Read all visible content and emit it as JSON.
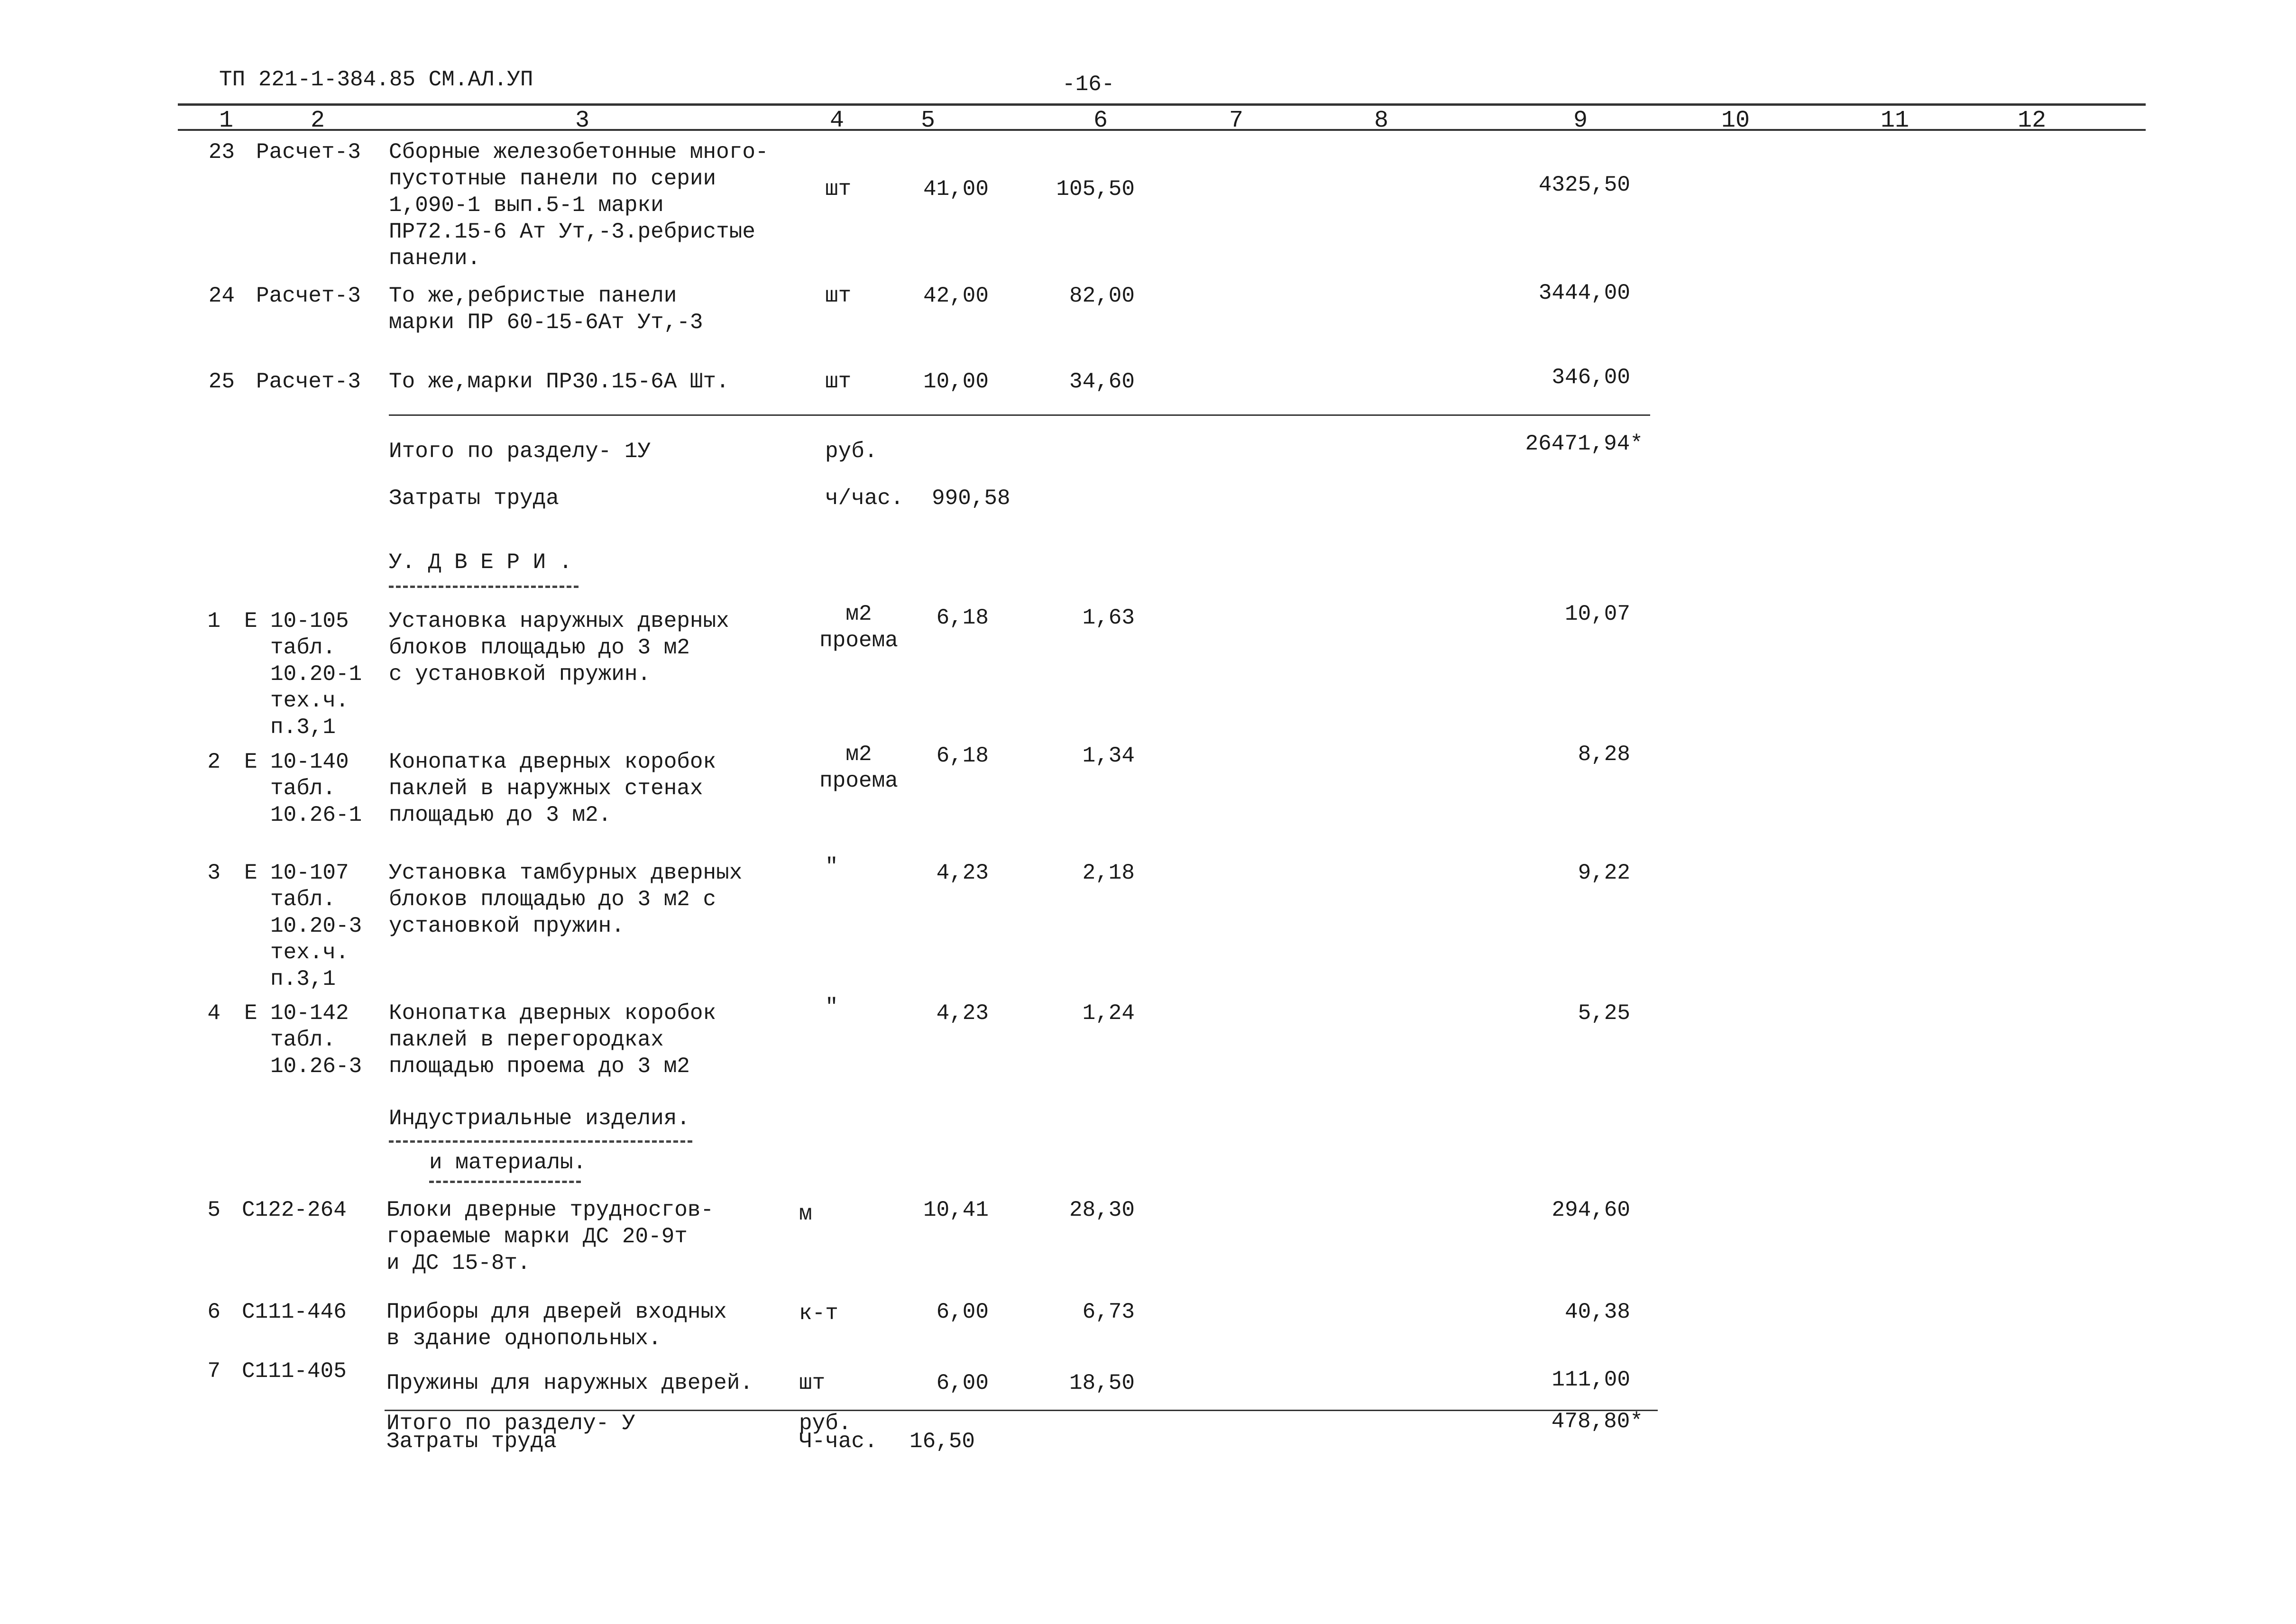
{
  "header": {
    "doc_code": "ТП 221-1-384.85 СМ.АЛ.УП",
    "page": "-16-",
    "columns": [
      "1",
      "2",
      "3",
      "4",
      "5",
      "6",
      "7",
      "8",
      "9",
      "10",
      "11",
      "12"
    ]
  },
  "section4_tail": {
    "rows": [
      {
        "no": "23",
        "code": "Расчет-3",
        "desc": "Сборные железобетонные много-\nпустотные  панели по серии\n1,090-1 вып.5-1 марки\nПР72.15-6 Ат Ут,-3.ребристые\nпанели.",
        "unit": "шт",
        "qty": "41,00",
        "price": "105,50",
        "total": "4325,50"
      },
      {
        "no": "24",
        "code": "Расчет-3",
        "desc": "То же,ребристые панели\nмарки ПР 60-15-6Ат Ут,-3",
        "unit": "шт",
        "qty": "42,00",
        "price": "82,00",
        "total": "3444,00"
      },
      {
        "no": "25",
        "code": "Расчет-3",
        "desc": "То же,марки ПР30.15-6А Шт.",
        "unit": "шт",
        "qty": "10,00",
        "price": "34,60",
        "total": "346,00"
      }
    ],
    "total_label": "Итого по разделу- 1У",
    "total_unit": "руб.",
    "total_value": "26471,94*",
    "labor_label": "Затраты труда",
    "labor_unit": "ч/час.",
    "labor_value": "990,58"
  },
  "section5": {
    "title": "У. Д В Е Р И .",
    "rows": [
      {
        "no": "1",
        "e": "Е",
        "code": "10-105\nтабл.\n10.20-1\nтех.ч.\nп.3,1",
        "desc": "Установка наружных дверных\nблоков площадью до 3 м2\nс установкой пружин.",
        "unit": "м2\nпроема",
        "qty": "6,18",
        "price": "1,63",
        "total": "10,07"
      },
      {
        "no": "2",
        "e": "Е",
        "code": "10-140\nтабл.\n10.26-1",
        "desc": "Конопатка дверных коробок\nпаклей в наружных стенах\nплощадью до 3 м2.",
        "unit": "м2\nпроема",
        "qty": "6,18",
        "price": "1,34",
        "total": "8,28"
      },
      {
        "no": "3",
        "e": "Е",
        "code": "10-107\nтабл.\n10.20-3\nтех.ч.\nп.3,1",
        "desc": "Установка тамбурных дверных\nблоков площадью до 3 м2 с\nустановкой пружин.",
        "unit": "\"",
        "qty": "4,23",
        "price": "2,18",
        "total": "9,22"
      },
      {
        "no": "4",
        "e": "Е",
        "code": "10-142\nтабл.\n10.26-3",
        "desc": "Конопатка дверных коробок\nпаклей в перегородках\nплощадью проема до 3 м2",
        "unit": "\"",
        "qty": "4,23",
        "price": "1,24",
        "total": "5,25"
      }
    ],
    "subheading_1": "Индустриальные изделия.",
    "subheading_2": "и материалы.",
    "rows2": [
      {
        "no": "5",
        "code": "С122-264",
        "desc": "Блоки дверные трудносгов-\nгораемые марки ДС 20-9т\nи ДС 15-8т.",
        "unit": "м",
        "qty": "10,41",
        "price": "28,30",
        "total": "294,60"
      },
      {
        "no": "6",
        "code": "С111-446",
        "desc": "Приборы для дверей входных\nв здание однопольных.",
        "unit": "к-т",
        "qty": "6,00",
        "price": "6,73",
        "total": "40,38"
      },
      {
        "no": "7",
        "code": "С111-405",
        "desc": "Пружины для наружных дверей.",
        "unit": "шт",
        "qty": "6,00",
        "price": "18,50",
        "total": "111,00"
      }
    ],
    "total_label": "Итого по разделу- У",
    "total_unit": "руб.",
    "total_value": "478,80*",
    "labor_label": "Затраты труда",
    "labor_unit": "Ч-час.",
    "labor_value": "16,50"
  }
}
